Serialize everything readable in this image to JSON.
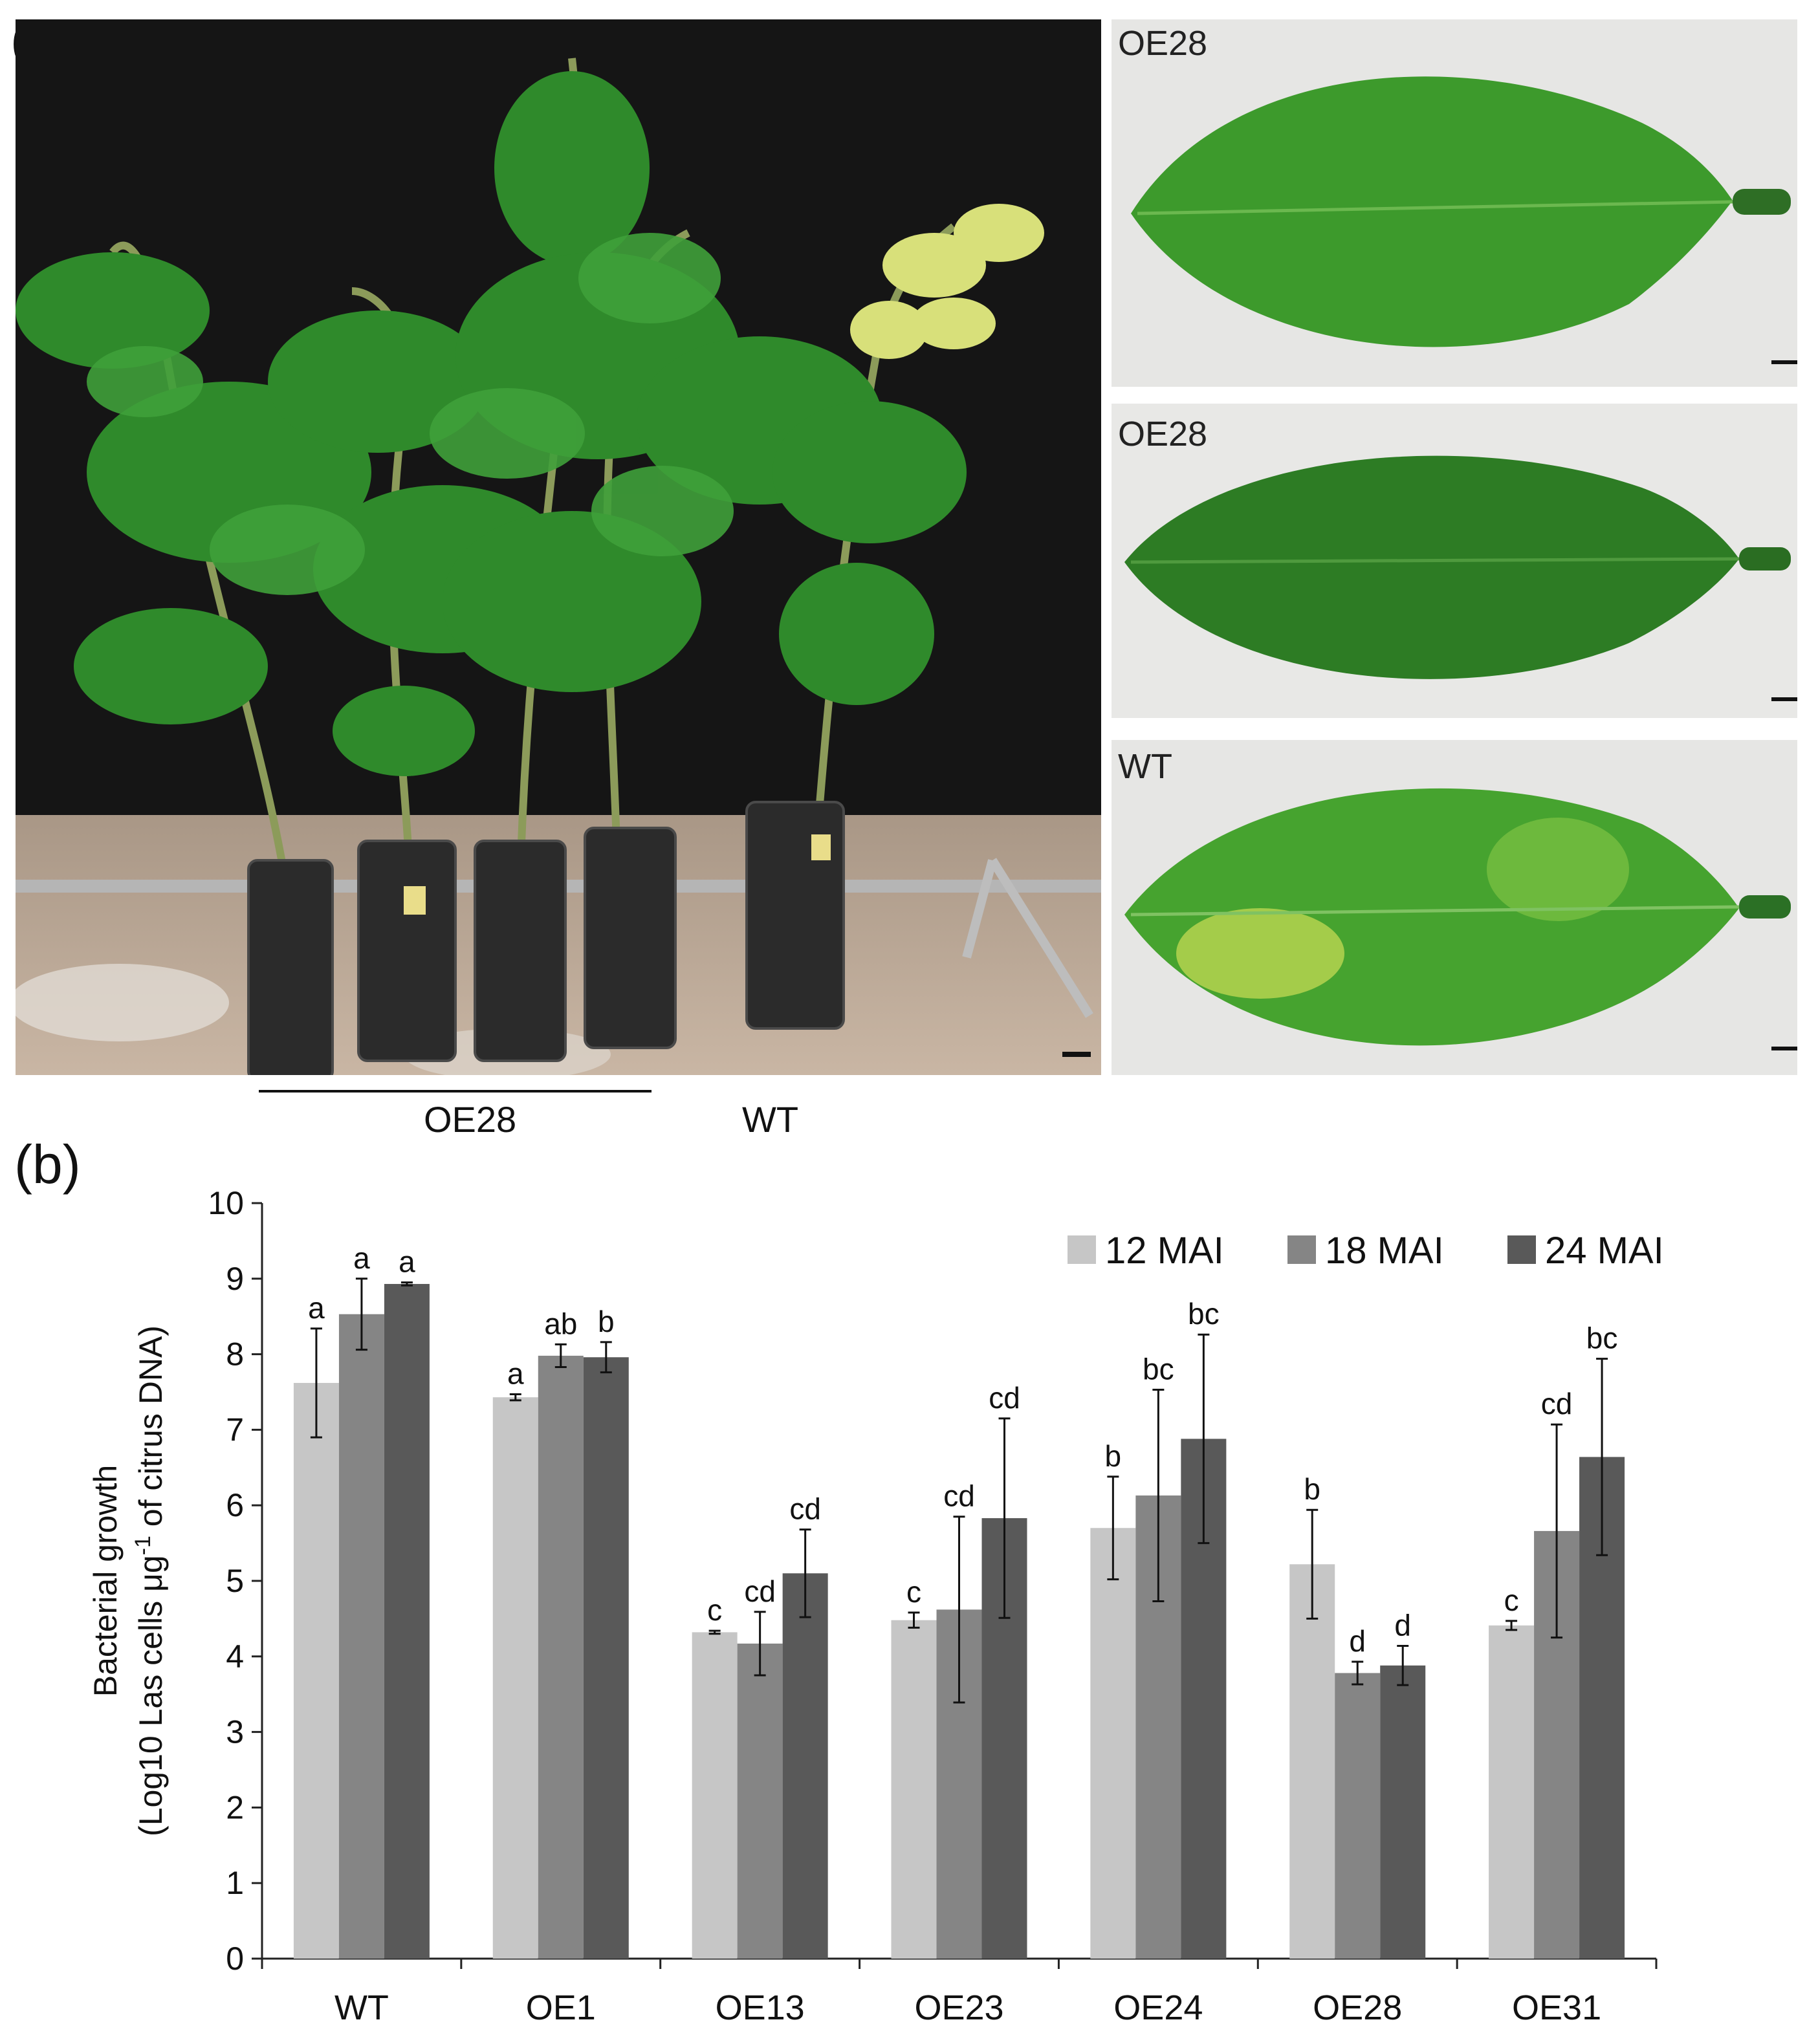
{
  "panel_a": {
    "letter": "(a)",
    "scale_bar": "",
    "group_labels": {
      "oe28": "OE28",
      "wt": "WT"
    },
    "leaf_photos": [
      {
        "label": "OE28",
        "leaf_color": "#3f9b2c",
        "appearance": "healthy"
      },
      {
        "label": "OE28",
        "leaf_color": "#2f7d26",
        "appearance": "healthy"
      },
      {
        "label": "WT",
        "leaf_color": "#4aa52f",
        "appearance": "blotchy mottle with yellow patches"
      }
    ],
    "colors": {
      "background_cloth": "#111111",
      "leaf_green": "#3d8f2b",
      "yellow_leaf": "#d9e27a",
      "pot": "#2a2a2a",
      "ground": "#b7a392"
    }
  },
  "panel_b": {
    "letter": "(b)"
  },
  "chart_data": {
    "type": "bar",
    "title": "",
    "xlabel": "",
    "ylabel_line1": "Bacterial growth",
    "ylabel_line2_prefix": "(Log10 Las cells μg",
    "ylabel_line2_sup": "-1",
    "ylabel_line2_suffix": " of citrus DNA)",
    "ylim": [
      0,
      10
    ],
    "yticks": [
      "0",
      "1",
      "2",
      "3",
      "4",
      "5",
      "6",
      "7",
      "8",
      "9",
      "10"
    ],
    "grid": false,
    "legend_position": "top-right",
    "categories": [
      "WT",
      "OE1",
      "OE13",
      "OE23",
      "OE24",
      "OE28",
      "OE31"
    ],
    "series": [
      {
        "name": "12 MAI",
        "color": "#c6c6c6",
        "values": [
          7.62,
          7.43,
          4.32,
          4.48,
          5.7,
          5.22,
          4.41
        ],
        "errors": [
          0.72,
          0.04,
          0.02,
          0.1,
          0.68,
          0.72,
          0.06
        ],
        "letters": [
          "a",
          "a",
          "c",
          "c",
          "b",
          "b",
          "c"
        ]
      },
      {
        "name": "18 MAI",
        "color": "#858585",
        "values": [
          8.53,
          7.98,
          4.17,
          4.62,
          6.13,
          3.78,
          5.66
        ],
        "errors": [
          0.47,
          0.15,
          0.42,
          1.23,
          1.4,
          0.15,
          1.41
        ],
        "letters": [
          "a",
          "ab",
          "cd",
          "cd",
          "bc",
          "d",
          "cd"
        ]
      },
      {
        "name": "24 MAI",
        "color": "#595959",
        "values": [
          8.93,
          7.96,
          5.1,
          5.83,
          6.88,
          3.88,
          6.64
        ],
        "errors": [
          0.02,
          0.2,
          0.58,
          1.32,
          1.38,
          0.26,
          1.3
        ],
        "letters": [
          "a",
          "b",
          "cd",
          "cd",
          "bc",
          "d",
          "bc"
        ]
      }
    ]
  }
}
